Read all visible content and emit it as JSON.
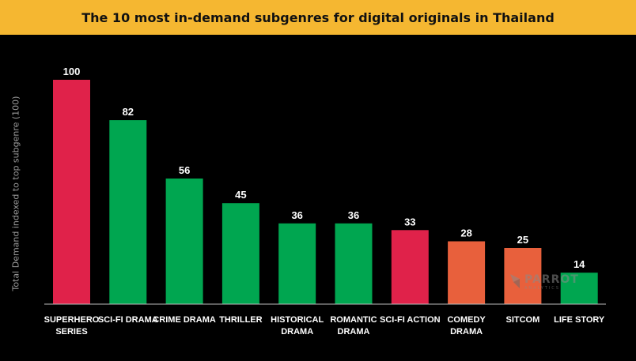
{
  "title": "The 10 most in-demand subgenres for digital originals in Thailand",
  "watermark": {
    "brand": "PARROT",
    "sub": "ANALYTICS"
  },
  "colors": {
    "background": "#000000",
    "title_bar": "#f5b731",
    "superhero": "#e0224a",
    "drama": "#00a650",
    "comedy": "#e8603c"
  },
  "chart_data": {
    "type": "bar",
    "title": "The 10 most in-demand subgenres for digital originals in Thailand",
    "xlabel": "",
    "ylabel": "Total Demand indexed to top subgenre (100)",
    "ylim": [
      0,
      100
    ],
    "grid": false,
    "categories": [
      [
        "SUPERHERO",
        "SERIES"
      ],
      [
        "SCI-FI DRAMA"
      ],
      [
        "CRIME DRAMA"
      ],
      [
        "THRILLER"
      ],
      [
        "HISTORICAL",
        "DRAMA"
      ],
      [
        "ROMANTIC",
        "DRAMA"
      ],
      [
        "SCI-FI ACTION"
      ],
      [
        "COMEDY",
        "DRAMA"
      ],
      [
        "SITCOM"
      ],
      [
        "LIFE STORY"
      ]
    ],
    "values": [
      100,
      82,
      56,
      45,
      36,
      36,
      33,
      28,
      25,
      14
    ],
    "bar_colors": [
      "#e0224a",
      "#00a650",
      "#00a650",
      "#00a650",
      "#00a650",
      "#00a650",
      "#e0224a",
      "#e8603c",
      "#e8603c",
      "#00a650"
    ]
  }
}
